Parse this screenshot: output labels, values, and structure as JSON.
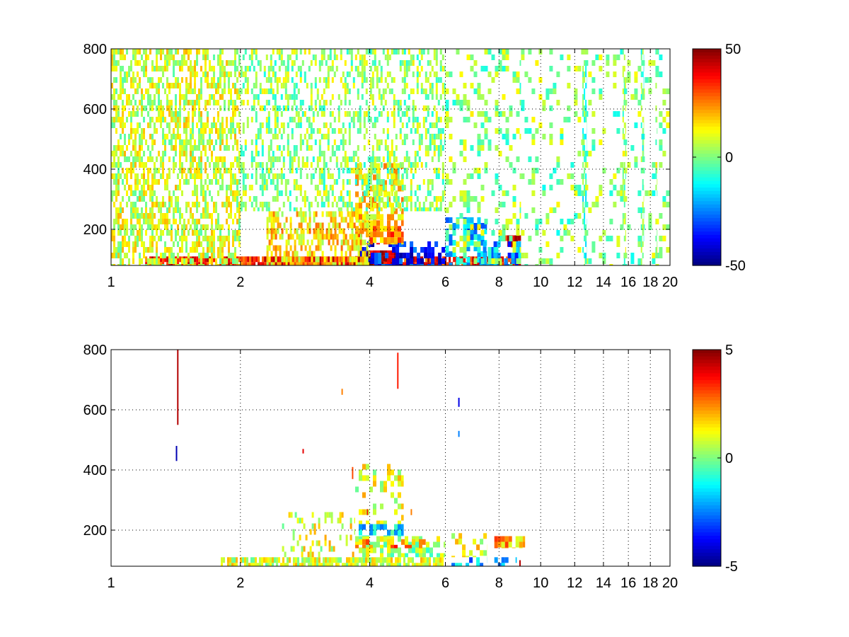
{
  "colors": {
    "background": "#ffffff",
    "axis": "#000000",
    "grid": "#000000",
    "colormap": "jet"
  },
  "chart_data": [
    {
      "type": "heatmap",
      "title": "",
      "xlabel": "",
      "ylabel": "",
      "xlim": [
        1,
        20
      ],
      "ylim": [
        80,
        800
      ],
      "x_scale": "log",
      "x_ticks": [
        1,
        2,
        4,
        6,
        8,
        10,
        12,
        14,
        16,
        18,
        20
      ],
      "x_tick_labels": [
        "1",
        "2",
        "4",
        "6",
        "8",
        "10",
        "12",
        "14",
        "16",
        "18",
        "20"
      ],
      "y_ticks": [
        200,
        400,
        600,
        800
      ],
      "y_tick_labels": [
        "200",
        "400",
        "600",
        "800"
      ],
      "grid": true,
      "colorbar": {
        "min": -50,
        "max": 50,
        "ticks": [
          50,
          0,
          -50
        ],
        "tick_labels": [
          "50",
          "0",
          "-50"
        ]
      },
      "regions": [
        {
          "x": [
            1.2,
            9.0
          ],
          "y": [
            80,
            110
          ],
          "value": 35,
          "density": 0.9
        },
        {
          "x": [
            3.7,
            4.6
          ],
          "y": [
            80,
            130
          ],
          "value": 45,
          "density": 0.95
        },
        {
          "x": [
            3.8,
            6.0
          ],
          "y": [
            80,
            160
          ],
          "value": -35,
          "density": 0.6
        },
        {
          "x": [
            3.7,
            4.8
          ],
          "y": [
            150,
            230
          ],
          "value": 25,
          "density": 0.8
        },
        {
          "x": [
            2.3,
            4.0
          ],
          "y": [
            80,
            260
          ],
          "value": 15,
          "density": 0.55
        },
        {
          "x": [
            6.0,
            7.5
          ],
          "y": [
            80,
            240
          ],
          "value": -20,
          "density": 0.55
        },
        {
          "x": [
            8.2,
            9.0
          ],
          "y": [
            140,
            180
          ],
          "value": 40,
          "density": 0.85
        },
        {
          "x": [
            7.2,
            9.0
          ],
          "y": [
            80,
            160
          ],
          "value": -25,
          "density": 0.5
        },
        {
          "x": [
            3.7,
            4.8
          ],
          "y": [
            230,
            420
          ],
          "value": 15,
          "density": 0.6
        },
        {
          "x": [
            1.0,
            2.0
          ],
          "y": [
            80,
            800
          ],
          "value": 8,
          "density": 0.55
        },
        {
          "x": [
            2.0,
            6.0
          ],
          "y": [
            260,
            800
          ],
          "value": 2,
          "density": 0.4
        },
        {
          "x": [
            6.0,
            9.0
          ],
          "y": [
            80,
            800
          ],
          "value": 2,
          "density": 0.28
        },
        {
          "x": [
            9.0,
            20.0
          ],
          "y": [
            80,
            800
          ],
          "value": 1,
          "density": 0.15
        },
        {
          "x": [
            12.5,
            12.8
          ],
          "y": [
            80,
            800
          ],
          "value": -5,
          "density": 0.5
        },
        {
          "x": [
            15.5,
            15.8
          ],
          "y": [
            80,
            800
          ],
          "value": 3,
          "density": 0.45
        },
        {
          "x": [
            17.1,
            17.4
          ],
          "y": [
            80,
            800
          ],
          "value": -3,
          "density": 0.55
        },
        {
          "x": [
            18.5,
            18.7
          ],
          "y": [
            80,
            800
          ],
          "value": 5,
          "density": 0.4
        }
      ]
    },
    {
      "type": "heatmap",
      "title": "",
      "xlabel": "",
      "ylabel": "",
      "xlim": [
        1,
        20
      ],
      "ylim": [
        80,
        800
      ],
      "x_scale": "log",
      "x_ticks": [
        1,
        2,
        4,
        6,
        8,
        10,
        12,
        14,
        16,
        18,
        20
      ],
      "x_tick_labels": [
        "1",
        "2",
        "4",
        "6",
        "8",
        "10",
        "12",
        "14",
        "16",
        "18",
        "20"
      ],
      "y_ticks": [
        200,
        400,
        600,
        800
      ],
      "y_tick_labels": [
        "200",
        "400",
        "600",
        "800"
      ],
      "grid": true,
      "colorbar": {
        "min": -5,
        "max": 5,
        "ticks": [
          5,
          0,
          -5
        ],
        "tick_labels": [
          "5",
          "0",
          "-5"
        ]
      },
      "regions": [
        {
          "x": [
            1.8,
            6.0
          ],
          "y": [
            80,
            110
          ],
          "value": 0.8,
          "density": 0.85
        },
        {
          "x": [
            3.7,
            6.0
          ],
          "y": [
            110,
            180
          ],
          "value": 0.3,
          "density": 0.6
        },
        {
          "x": [
            3.7,
            5.4
          ],
          "y": [
            140,
            170
          ],
          "value": 2.5,
          "density": 0.6
        },
        {
          "x": [
            3.7,
            4.8
          ],
          "y": [
            180,
            220
          ],
          "value": -1.5,
          "density": 0.55
        },
        {
          "x": [
            6.2,
            7.5
          ],
          "y": [
            80,
            110
          ],
          "value": -2.0,
          "density": 0.5
        },
        {
          "x": [
            6.2,
            7.5
          ],
          "y": [
            110,
            190
          ],
          "value": 1.2,
          "density": 0.4
        },
        {
          "x": [
            7.8,
            9.2
          ],
          "y": [
            140,
            180
          ],
          "value": 2.0,
          "density": 0.65
        },
        {
          "x": [
            7.8,
            8.8
          ],
          "y": [
            80,
            110
          ],
          "value": -1.5,
          "density": 0.45
        },
        {
          "x": [
            2.5,
            3.7
          ],
          "y": [
            110,
            260
          ],
          "value": 1.0,
          "density": 0.2
        },
        {
          "x": [
            3.7,
            4.8
          ],
          "y": [
            220,
            420
          ],
          "value": 1.0,
          "density": 0.25
        }
      ],
      "streaks": [
        {
          "x": 1.43,
          "y": [
            550,
            800
          ],
          "value": 4.5
        },
        {
          "x": 1.42,
          "y": [
            430,
            480
          ],
          "value": -4.5
        },
        {
          "x": 4.65,
          "y": [
            670,
            790
          ],
          "value": 3.5
        },
        {
          "x": 6.45,
          "y": [
            610,
            640
          ],
          "value": -4.0
        },
        {
          "x": 6.45,
          "y": [
            510,
            530
          ],
          "value": -2.5
        },
        {
          "x": 3.65,
          "y": [
            370,
            410
          ],
          "value": 3.0
        },
        {
          "x": 3.45,
          "y": [
            650,
            670
          ],
          "value": 2.5
        },
        {
          "x": 2.8,
          "y": [
            455,
            470
          ],
          "value": 4.0
        },
        {
          "x": 5.0,
          "y": [
            250,
            270
          ],
          "value": 2.5
        },
        {
          "x": 3.95,
          "y": [
            250,
            270
          ],
          "value": 3.5
        },
        {
          "x": 8.95,
          "y": [
            80,
            100
          ],
          "value": 4.5
        }
      ]
    }
  ]
}
